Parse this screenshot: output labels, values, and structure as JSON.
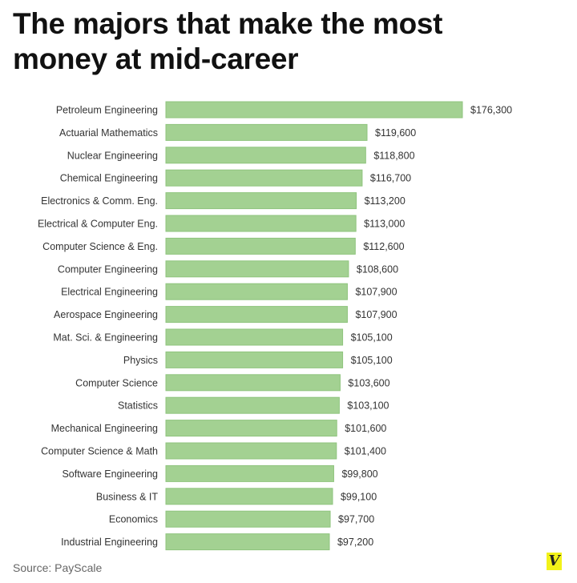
{
  "title_line1": "The majors that make the most",
  "title_line2": "money at mid-career",
  "source": "Source: PayScale",
  "logo": "V",
  "chart_data": {
    "type": "bar",
    "orientation": "horizontal",
    "title": "The majors that make the most money at mid-career",
    "categories": [
      "Petroleum Engineering",
      "Actuarial Mathematics",
      "Nuclear Engineering",
      "Chemical Engineering",
      "Electronics & Comm. Eng.",
      "Electrical & Computer Eng.",
      "Computer Science &  Eng.",
      "Computer Engineering",
      "Electrical Engineering",
      "Aerospace Engineering",
      "Mat. Sci. & Engineering",
      "Physics",
      "Computer Science",
      "Statistics",
      "Mechanical Engineering",
      "Computer Science & Math",
      "Software Engineering",
      "Business & IT",
      "Economics",
      "Industrial Engineering"
    ],
    "values": [
      176300,
      119600,
      118800,
      116700,
      113200,
      113000,
      112600,
      108600,
      107900,
      107900,
      105100,
      105100,
      103600,
      103100,
      101600,
      101400,
      99800,
      99100,
      97700,
      97200
    ],
    "data_labels": [
      "$176,300",
      "$119,600",
      "$118,800",
      "$116,700",
      "$113,200",
      "$113,000",
      "$112,600",
      "$108,600",
      "$107,900",
      "$107,900",
      "$105,100",
      "$105,100",
      "$103,600",
      "$103,100",
      "$101,600",
      "$101,400",
      "$99,800",
      "$99,100",
      "$97,700",
      "$97,200"
    ],
    "xlim": [
      0,
      176300
    ],
    "grid": false,
    "bar_color": "#a3d192",
    "bar_border": "#8fc47e"
  }
}
